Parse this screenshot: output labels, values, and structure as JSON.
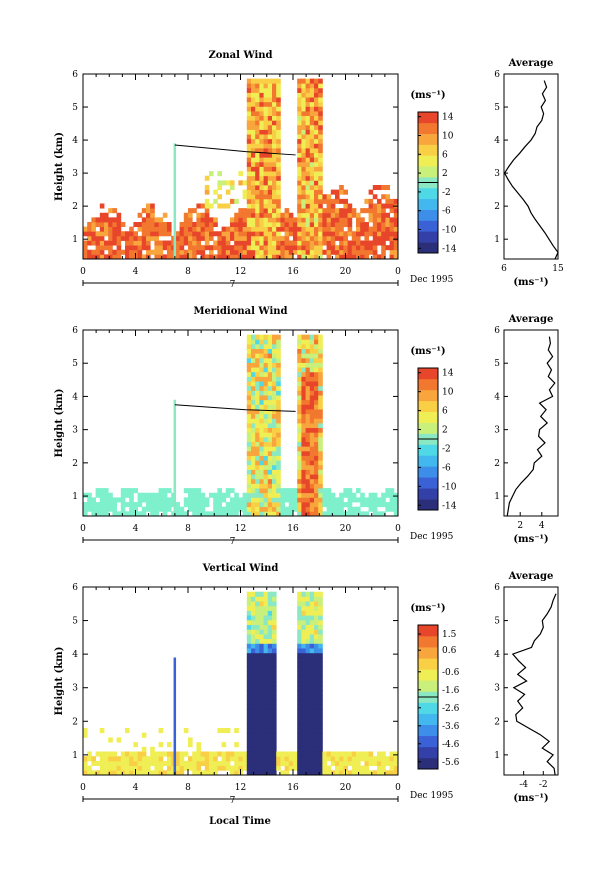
{
  "figure": {
    "xlabel": "Local Time"
  },
  "colors": {
    "scale": [
      "#2b2f7a",
      "#3340a8",
      "#3a62d6",
      "#3d8ee8",
      "#43b8ee",
      "#4fd8e6",
      "#8ae8c2",
      "#c8f07a",
      "#f0ee55",
      "#f8cf45",
      "#f7a53c",
      "#f2772f",
      "#e8462b"
    ],
    "data_fill": "#7ef0cc"
  },
  "chart_data": [
    {
      "type": "heatmap",
      "title": "Zonal Wind",
      "ylabel": "Height (km)",
      "ylim": [
        0.4,
        6
      ],
      "y_ticks": [
        "1",
        "2",
        "3",
        "4",
        "5",
        "6"
      ],
      "xlim": [
        0,
        24
      ],
      "x_ticks": [
        "0",
        "4",
        "8",
        "12",
        "16",
        "20",
        "0"
      ],
      "day_label": "7",
      "date_label": "Dec 1995",
      "colorbar": {
        "unit": "(ms⁻¹)",
        "range": [
          -15,
          15
        ],
        "ticks": [
          "14",
          "10",
          "6",
          "2",
          "-2",
          "-6",
          "-10",
          "-14"
        ]
      },
      "profile": {
        "title": "Average",
        "xlabel": "(ms⁻¹)",
        "xlim": [
          6,
          15
        ],
        "x_ticks": [
          "6",
          "15"
        ],
        "heights": [
          0.4,
          0.6,
          0.8,
          1.0,
          1.2,
          1.4,
          1.6,
          1.8,
          2.0,
          2.2,
          2.4,
          2.6,
          2.8,
          3.0,
          3.2,
          3.4,
          3.6,
          3.8,
          4.0,
          4.2,
          4.4,
          4.6,
          4.8,
          5.0,
          5.2,
          5.4,
          5.6,
          5.8
        ],
        "values": [
          14.5,
          15,
          14.2,
          13.5,
          12.8,
          12,
          11.2,
          10.5,
          10,
          9.2,
          8.3,
          7.4,
          6.7,
          6.1,
          6.8,
          7.6,
          8.6,
          9.5,
          10.5,
          11.2,
          11.5,
          12.3,
          12.6,
          12.2,
          12.9,
          12.4,
          13.1,
          12.7
        ]
      }
    },
    {
      "type": "heatmap",
      "title": "Meridional Wind",
      "ylabel": "Height (km)",
      "ylim": [
        0.4,
        6
      ],
      "y_ticks": [
        "1",
        "2",
        "3",
        "4",
        "5",
        "6"
      ],
      "xlim": [
        0,
        24
      ],
      "x_ticks": [
        "0",
        "4",
        "8",
        "12",
        "16",
        "20",
        "0"
      ],
      "day_label": "7",
      "date_label": "Dec 1995",
      "colorbar": {
        "unit": "(ms⁻¹)",
        "range": [
          -15,
          15
        ],
        "ticks": [
          "14",
          "10",
          "6",
          "2",
          "-2",
          "-6",
          "-10",
          "-14"
        ]
      },
      "profile": {
        "title": "Average",
        "xlabel": "(ms⁻¹)",
        "xlim": [
          0.5,
          5.5
        ],
        "x_ticks": [
          "2",
          "4"
        ],
        "heights": [
          0.4,
          0.6,
          0.8,
          1.0,
          1.2,
          1.4,
          1.6,
          1.8,
          2.0,
          2.2,
          2.4,
          2.6,
          2.8,
          3.0,
          3.2,
          3.4,
          3.6,
          3.8,
          4.0,
          4.2,
          4.4,
          4.6,
          4.8,
          5.0,
          5.2,
          5.4,
          5.6,
          5.8
        ],
        "values": [
          0.8,
          0.9,
          1.0,
          1.3,
          1.6,
          2.1,
          2.7,
          3.2,
          3.3,
          4.0,
          3.6,
          4.3,
          3.7,
          3.8,
          4.5,
          3.9,
          4.4,
          3.8,
          5.0,
          4.7,
          5.2,
          4.6,
          4.9,
          4.5,
          5.0,
          4.6,
          4.8,
          4.7
        ]
      }
    },
    {
      "type": "heatmap",
      "title": "Vertical Wind",
      "ylabel": "Height (km)",
      "ylim": [
        0.4,
        6
      ],
      "y_ticks": [
        "1",
        "2",
        "3",
        "4",
        "5",
        "6"
      ],
      "xlim": [
        0,
        24
      ],
      "x_ticks": [
        "0",
        "4",
        "8",
        "12",
        "16",
        "20",
        "0"
      ],
      "day_label": "7",
      "date_label": "Dec 1995",
      "colorbar": {
        "unit": "(ms⁻¹)",
        "range": [
          -6,
          2
        ],
        "ticks": [
          "1.5",
          "0.6",
          "-0.6",
          "-1.6",
          "-2.6",
          "-3.6",
          "-4.6",
          "-5.6"
        ]
      },
      "profile": {
        "title": "Average",
        "xlabel": "(ms⁻¹)",
        "xlim": [
          -6,
          -0.5
        ],
        "x_ticks": [
          "-4",
          "-2"
        ],
        "heights": [
          0.4,
          0.6,
          0.8,
          1.0,
          1.2,
          1.4,
          1.6,
          1.8,
          2.0,
          2.2,
          2.4,
          2.6,
          2.8,
          3.0,
          3.2,
          3.4,
          3.6,
          3.8,
          4.0,
          4.2,
          4.4,
          4.6,
          4.8,
          5.0,
          5.2,
          5.4,
          5.6,
          5.8
        ],
        "values": [
          -0.8,
          -0.9,
          -1.6,
          -1.0,
          -2.1,
          -1.4,
          -2.3,
          -3.5,
          -4.7,
          -4.8,
          -4.1,
          -4.6,
          -3.9,
          -5.0,
          -3.7,
          -4.6,
          -3.8,
          -4.5,
          -5.1,
          -3.2,
          -2.9,
          -2.3,
          -2.0,
          -2.1,
          -1.6,
          -1.2,
          -1.0,
          -0.7
        ]
      }
    }
  ]
}
